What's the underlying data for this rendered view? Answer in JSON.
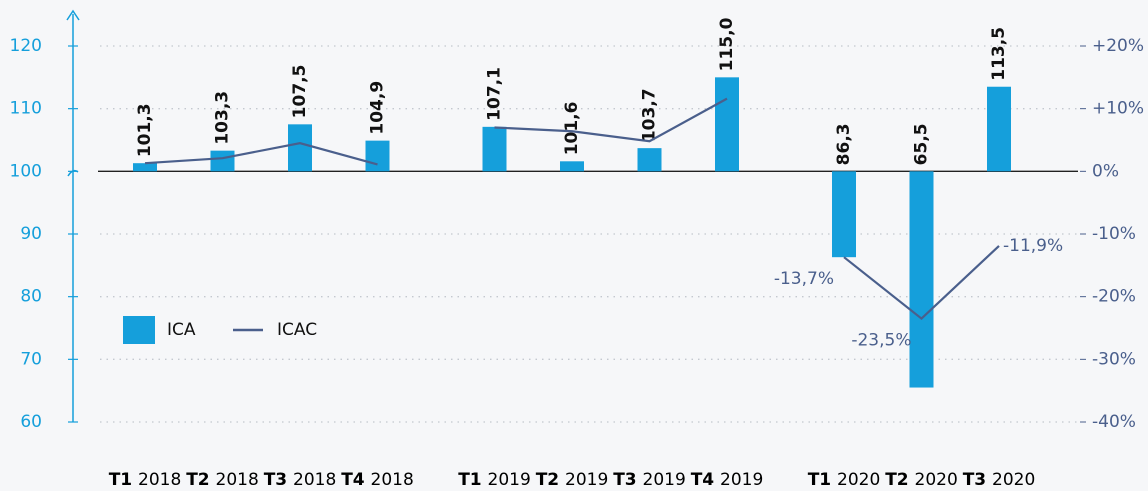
{
  "chart_data": {
    "type": "bar",
    "categories": [
      "T1 2018",
      "T2 2018",
      "T3 2018",
      "T4 2018",
      null,
      "T1 2019",
      "T2 2019",
      "T3 2019",
      "T4 2019",
      null,
      "T1 2020",
      "T2 2020",
      "T3 2020"
    ],
    "series": [
      {
        "name": "ICA",
        "type": "bar",
        "color": "#159fdb",
        "values": [
          101.3,
          103.3,
          107.5,
          104.9,
          null,
          107.1,
          101.6,
          103.7,
          115.0,
          null,
          86.3,
          65.5,
          113.5
        ],
        "value_labels": [
          "101,3",
          "103,3",
          "107,5",
          "104,9",
          null,
          "107,1",
          "101,6",
          "103,7",
          "115,0",
          null,
          "86,3",
          "65,5",
          "113,5"
        ]
      },
      {
        "name": "ICAC",
        "type": "line",
        "axis": "y2",
        "color": "#4a5f8c",
        "values": [
          1.3,
          2.1,
          4.5,
          1.1,
          null,
          7.0,
          6.4,
          4.8,
          11.6,
          null,
          -13.7,
          -23.5,
          -11.9
        ],
        "value_labels": [
          null,
          null,
          null,
          null,
          null,
          null,
          null,
          null,
          null,
          null,
          "-13,7%",
          "-23,5%",
          "-11,9%"
        ]
      }
    ],
    "ylim": [
      60,
      120
    ],
    "yticks": [
      60,
      70,
      80,
      90,
      100,
      110,
      120
    ],
    "y2lim": [
      -40,
      20
    ],
    "y2ticks": [
      {
        "value": -40,
        "label": "-40%"
      },
      {
        "value": -30,
        "label": "-30%"
      },
      {
        "value": -20,
        "label": "-20%"
      },
      {
        "value": -10,
        "label": "-10%"
      },
      {
        "value": 0,
        "label": "0%"
      },
      {
        "value": 10,
        "label": "+10%"
      },
      {
        "value": 20,
        "label": "+20%"
      }
    ],
    "bar_base": 100,
    "grid": true,
    "legend": "center-left"
  }
}
